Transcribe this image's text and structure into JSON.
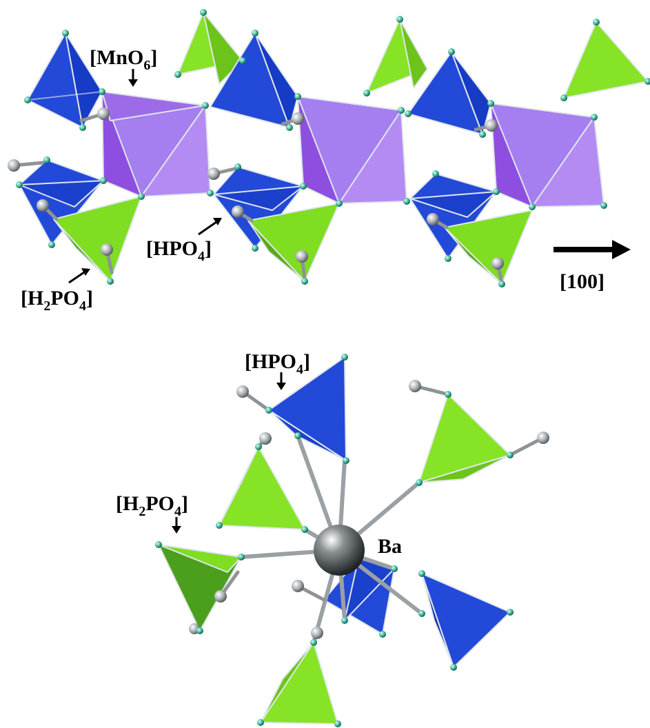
{
  "labels": {
    "mno6_open": "[MnO",
    "mno6_sub": "6",
    "mno6_close": "]",
    "hpo4_top_open": "[HPO",
    "hpo4_top_sub": "4",
    "hpo4_top_close": "]",
    "h2po4_top_a": "[H",
    "h2po4_top_sub1": "2",
    "h2po4_top_b": "PO",
    "h2po4_top_sub2": "4",
    "h2po4_top_close": "]",
    "direction": "[100]",
    "hpo4_bottom_open": "[HPO",
    "hpo4_bottom_sub": "4",
    "hpo4_bottom_close": "]",
    "h2po4_bottom_a": "[H",
    "h2po4_bottom_sub1": "2",
    "h2po4_bottom_b": "PO",
    "h2po4_bottom_sub2": "4",
    "h2po4_bottom_close": "]",
    "ba": "Ba"
  },
  "legend_colors": {
    "mno6": "#9b6fe0",
    "hpo4": "#1a3fd6",
    "h2po4": "#7fdd22",
    "oxygen": "#2fa58c",
    "hydrogen": "#a9afb3",
    "barium": "#333839"
  }
}
